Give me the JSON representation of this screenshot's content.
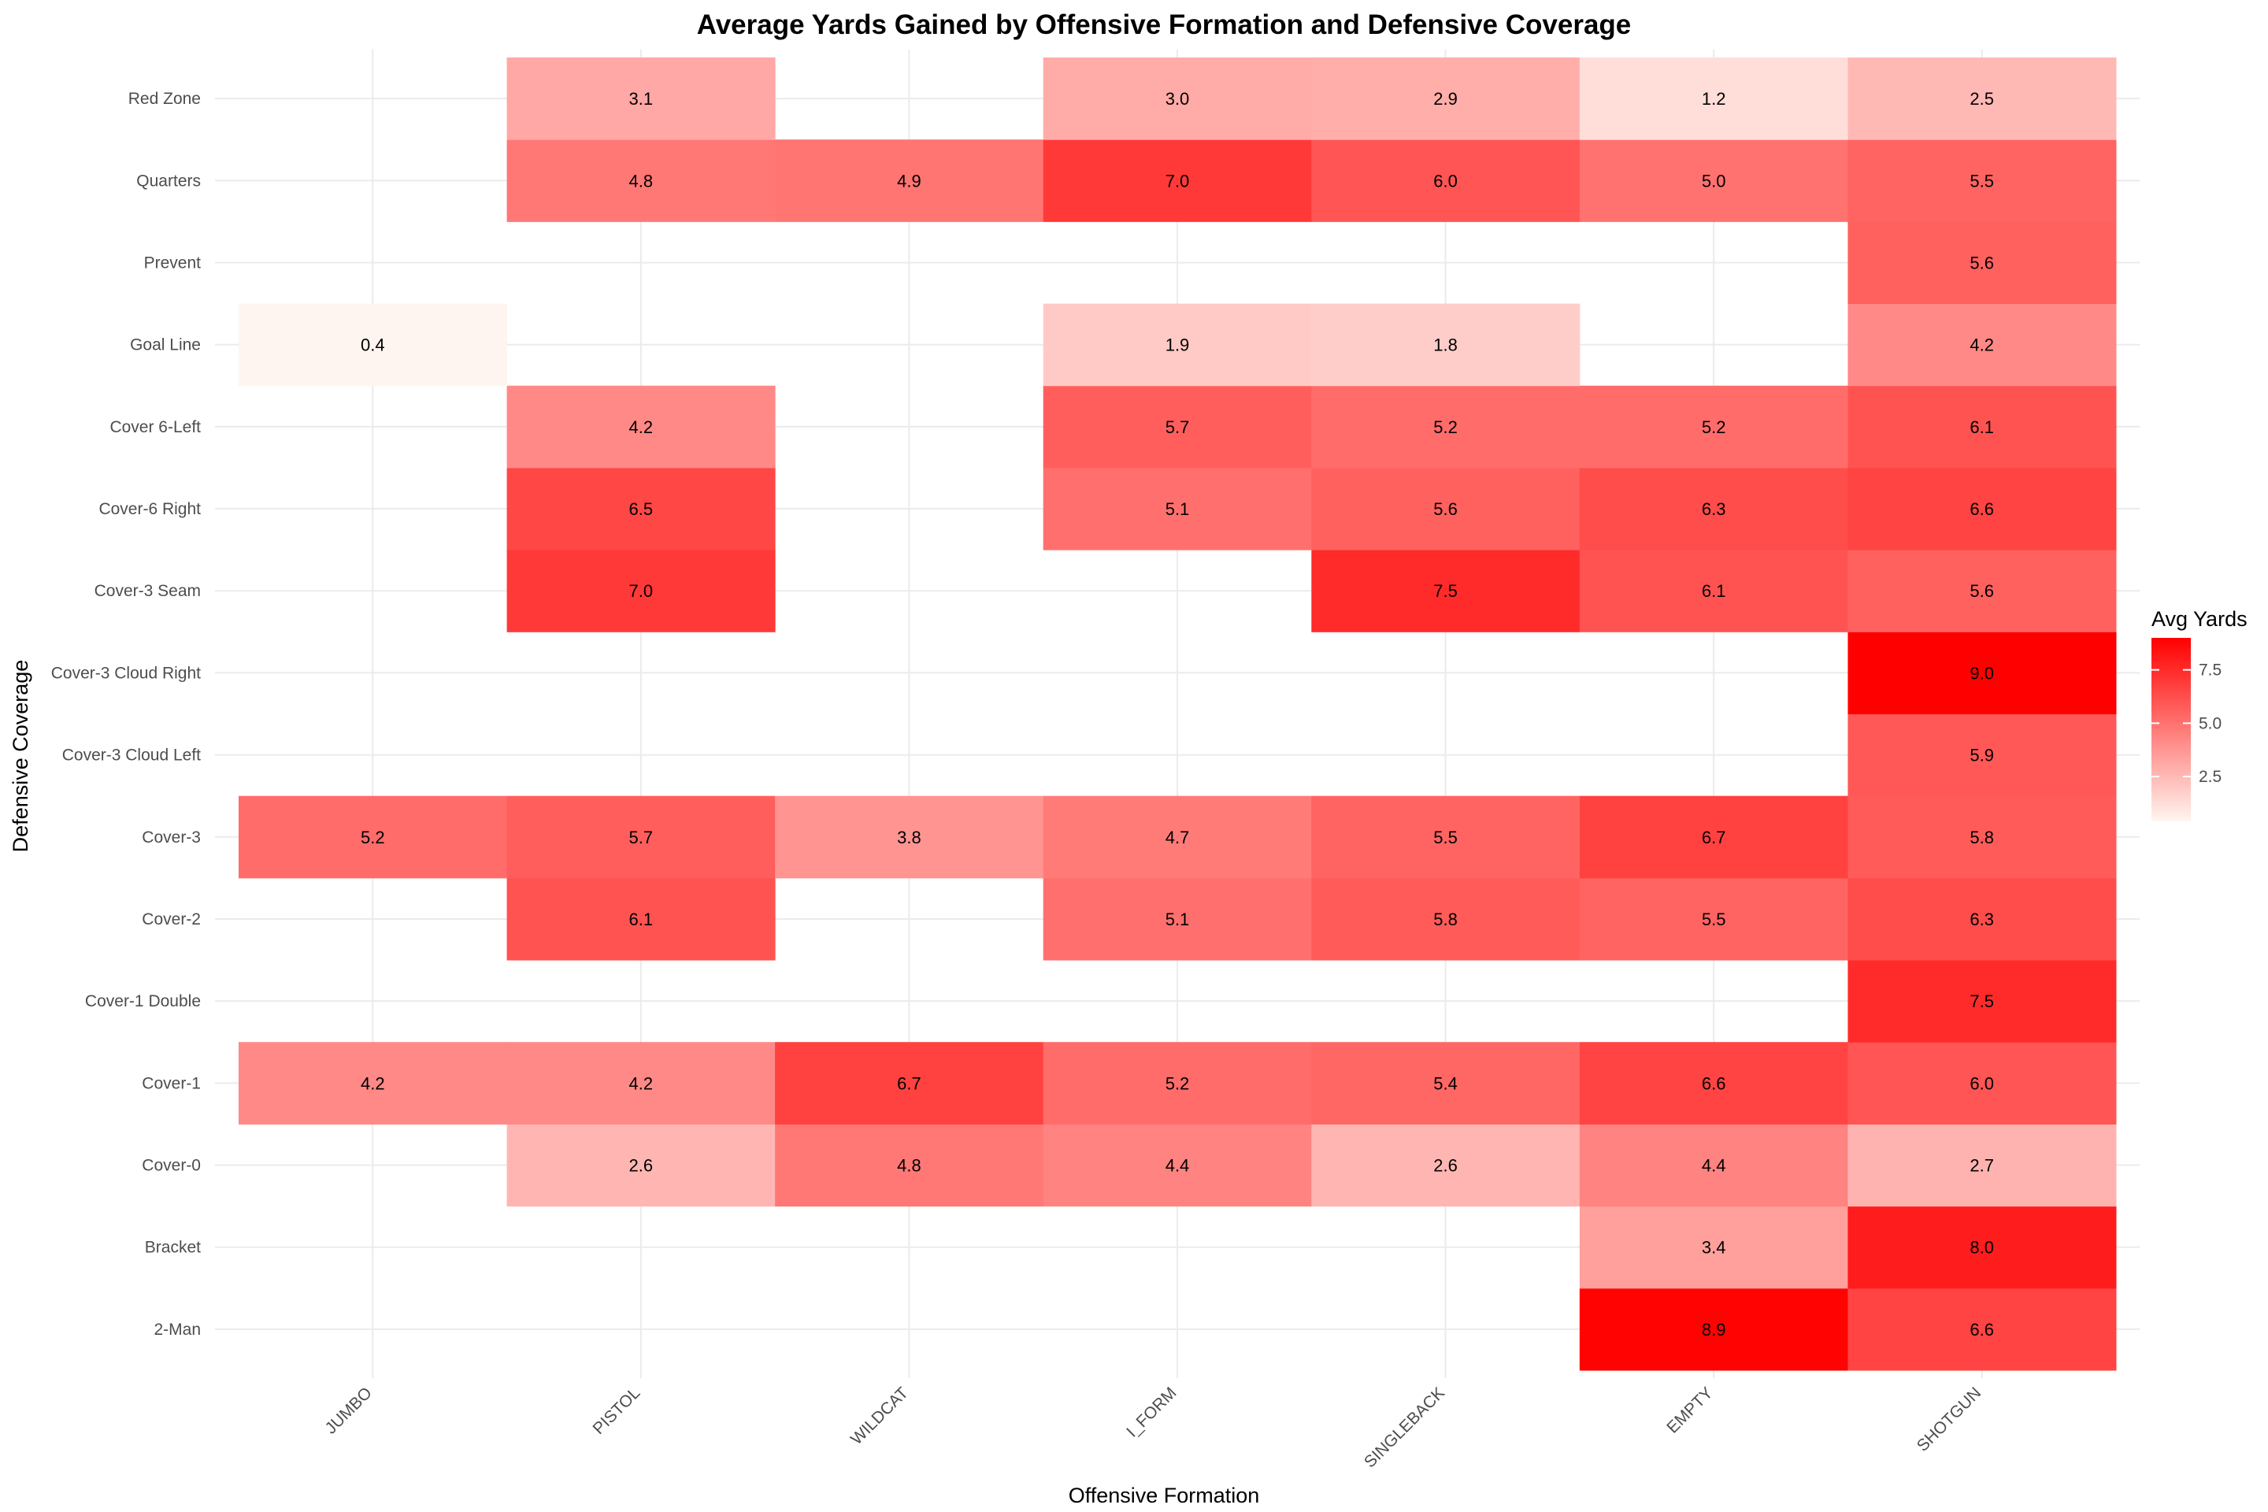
{
  "chart_data": {
    "type": "heatmap",
    "title": "Average Yards Gained by Offensive Formation and Defensive Coverage",
    "xlabel": "Offensive Formation",
    "ylabel": "Defensive Coverage",
    "x_categories": [
      "JUMBO",
      "PISTOL",
      "WILDCAT",
      "I_FORM",
      "SINGLEBACK",
      "EMPTY",
      "SHOTGUN"
    ],
    "y_categories": [
      "2-Man",
      "Bracket",
      "Cover-0",
      "Cover-1",
      "Cover-1 Double",
      "Cover-2",
      "Cover-3",
      "Cover-3 Cloud Left",
      "Cover-3 Cloud Right",
      "Cover-3 Seam",
      "Cover-6 Right",
      "Cover 6-Left",
      "Goal Line",
      "Prevent",
      "Quarters",
      "Red Zone"
    ],
    "values": [
      [
        null,
        null,
        null,
        null,
        null,
        8.9,
        6.6
      ],
      [
        null,
        null,
        null,
        null,
        null,
        3.4,
        8.0
      ],
      [
        null,
        2.6,
        4.8,
        4.4,
        2.6,
        4.4,
        2.7
      ],
      [
        4.2,
        4.2,
        6.7,
        5.2,
        5.4,
        6.6,
        6.0
      ],
      [
        null,
        null,
        null,
        null,
        null,
        null,
        7.5
      ],
      [
        null,
        6.1,
        null,
        5.1,
        5.8,
        5.5,
        6.3
      ],
      [
        5.2,
        5.7,
        3.8,
        4.7,
        5.5,
        6.7,
        5.8
      ],
      [
        null,
        null,
        null,
        null,
        null,
        null,
        5.9
      ],
      [
        null,
        null,
        null,
        null,
        null,
        null,
        9.0
      ],
      [
        null,
        7.0,
        null,
        null,
        7.5,
        6.1,
        5.6
      ],
      [
        null,
        6.5,
        null,
        5.1,
        5.6,
        6.3,
        6.6
      ],
      [
        null,
        4.2,
        null,
        5.7,
        5.2,
        5.2,
        6.1
      ],
      [
        0.4,
        null,
        null,
        1.9,
        1.8,
        null,
        4.2
      ],
      [
        null,
        null,
        null,
        null,
        null,
        null,
        5.6
      ],
      [
        null,
        4.8,
        4.9,
        7.0,
        6.0,
        5.0,
        5.5
      ],
      [
        null,
        3.1,
        null,
        3.0,
        2.9,
        1.2,
        2.5
      ]
    ],
    "color_scale": {
      "low": "#fff5f0",
      "high": "#ff0000",
      "min": 0.4,
      "max": 9.0
    },
    "legend": {
      "title": "Avg Yards",
      "ticks": [
        2.5,
        5.0,
        7.5
      ],
      "tick_labels": [
        "2.5",
        "5.0",
        "7.5"
      ],
      "placement": "right"
    },
    "grid": true
  }
}
